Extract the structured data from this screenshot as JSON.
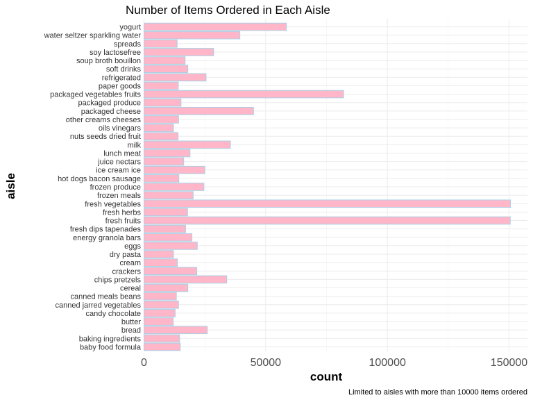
{
  "chart_data": {
    "type": "bar",
    "orientation": "horizontal",
    "title": "Number of Items Ordered in Each Aisle",
    "xlabel": "count",
    "ylabel": "aisle",
    "caption": "Limited to aisles with more than 10000 items ordered",
    "xlim": [
      0,
      160000
    ],
    "xticks": [
      0,
      50000,
      100000,
      150000
    ],
    "xtick_labels": [
      "0",
      "50000",
      "100000",
      "150000"
    ],
    "grid": true,
    "legend": "none",
    "colors": {
      "bar_fill": "#ffb6c8",
      "bar_outline": "#a9d0e6"
    },
    "categories": [
      "baby food formula",
      "baking ingredients",
      "bread",
      "butter",
      "candy chocolate",
      "canned jarred vegetables",
      "canned meals beans",
      "cereal",
      "chips pretzels",
      "crackers",
      "cream",
      "dry pasta",
      "eggs",
      "energy granola bars",
      "fresh dips tapenades",
      "fresh fruits",
      "fresh herbs",
      "fresh vegetables",
      "frozen meals",
      "frozen produce",
      "hot dogs bacon sausage",
      "ice cream ice",
      "juice nectars",
      "lunch meat",
      "milk",
      "nuts seeds dried fruit",
      "oils vinegars",
      "other creams cheeses",
      "packaged cheese",
      "packaged produce",
      "packaged vegetables fruits",
      "paper goods",
      "refrigerated",
      "soft drinks",
      "soup broth bouillon",
      "soy lactosefree",
      "spreads",
      "water seltzer sparkling water",
      "yogurt"
    ],
    "values": [
      14900,
      14600,
      26000,
      12000,
      12800,
      14200,
      13300,
      18000,
      34000,
      21700,
      13700,
      12100,
      21900,
      19700,
      17100,
      150500,
      17900,
      150600,
      20200,
      24600,
      14300,
      25000,
      16300,
      18900,
      35500,
      14000,
      12100,
      14200,
      45000,
      15200,
      82000,
      14100,
      25500,
      18000,
      16900,
      28600,
      13600,
      39400,
      58500
    ]
  }
}
